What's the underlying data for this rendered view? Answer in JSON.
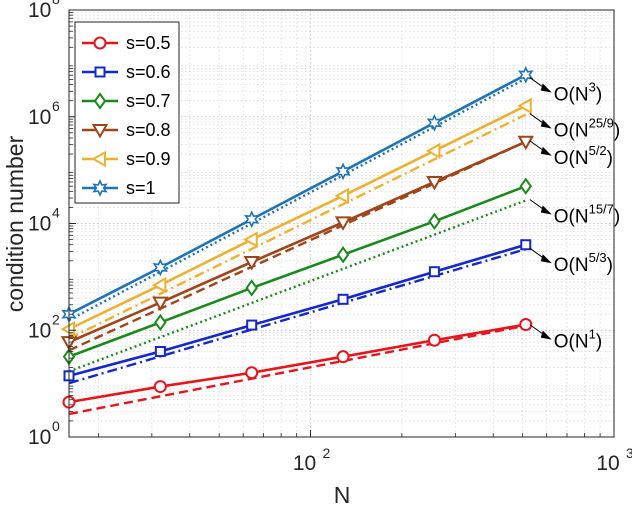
{
  "chart_data": {
    "type": "line",
    "title": "",
    "xlabel": "N",
    "ylabel": "condition number",
    "xscale": "log",
    "yscale": "log",
    "xlim": [
      16,
      1000
    ],
    "ylim": [
      1,
      100000000
    ],
    "grid": true,
    "legend_position": "top-left",
    "x_ticks": [
      {
        "value": 100,
        "base": "10",
        "exp": "2"
      },
      {
        "value": 1000,
        "base": "10",
        "exp": "3"
      }
    ],
    "y_ticks": [
      {
        "value": 1,
        "base": "10",
        "exp": "0"
      },
      {
        "value": 100,
        "base": "10",
        "exp": "2"
      },
      {
        "value": 10000,
        "base": "10",
        "exp": "4"
      },
      {
        "value": 1000000,
        "base": "10",
        "exp": "6"
      },
      {
        "value": 100000000,
        "base": "10",
        "exp": "8"
      }
    ],
    "x": [
      16,
      32,
      64,
      128,
      256,
      512
    ],
    "series": [
      {
        "name": "s=0.5",
        "color": "#e8141c",
        "marker": "circle",
        "values": [
          4.5,
          8.8,
          16,
          32,
          65,
          128
        ]
      },
      {
        "name": "s=0.6",
        "color": "#1428cc",
        "marker": "square",
        "values": [
          14,
          40,
          125,
          380,
          1250,
          4000
        ]
      },
      {
        "name": "s=0.7",
        "color": "#1a8a1a",
        "marker": "diamond",
        "values": [
          32,
          140,
          620,
          2600,
          11000,
          50000
        ]
      },
      {
        "name": "s=0.8",
        "color": "#a0441a",
        "marker": "triangle-down",
        "values": [
          60,
          330,
          1900,
          10500,
          60000,
          340000
        ]
      },
      {
        "name": "s=0.9",
        "color": "#eeb030",
        "marker": "triangle-left",
        "values": [
          105,
          700,
          5000,
          33000,
          230000,
          1600000
        ]
      },
      {
        "name": "s=1",
        "color": "#1e74b4",
        "marker": "hexagram",
        "values": [
          200,
          1500,
          12000,
          95000,
          770000,
          6100000
        ]
      }
    ],
    "reference_lines": [
      {
        "label_base": "O(N",
        "label_exp": "1",
        "color": "#e8141c",
        "style": "dashed",
        "values": [
          2.7,
          122
        ]
      },
      {
        "label_base": "O(N",
        "label_exp": "5/3",
        "color": "#1428cc",
        "style": "dashdot",
        "values": [
          10.2,
          3300
        ]
      },
      {
        "label_base": "O(N",
        "label_exp": "15/7",
        "color": "#1a8a1a",
        "style": "dotted",
        "values": [
          17,
          27000
        ]
      },
      {
        "label_base": "O(N",
        "label_exp": "5/2",
        "color": "#a0441a",
        "style": "dashed",
        "values": [
          42,
          340000
        ]
      },
      {
        "label_base": "O(N",
        "label_exp": "25/9",
        "color": "#eeb030",
        "style": "dashdot",
        "values": [
          70,
          1100000
        ]
      },
      {
        "label_base": "O(N",
        "label_exp": "3",
        "color": "#1e74b4",
        "style": "dotted",
        "values": [
          155,
          5200000
        ]
      }
    ]
  }
}
